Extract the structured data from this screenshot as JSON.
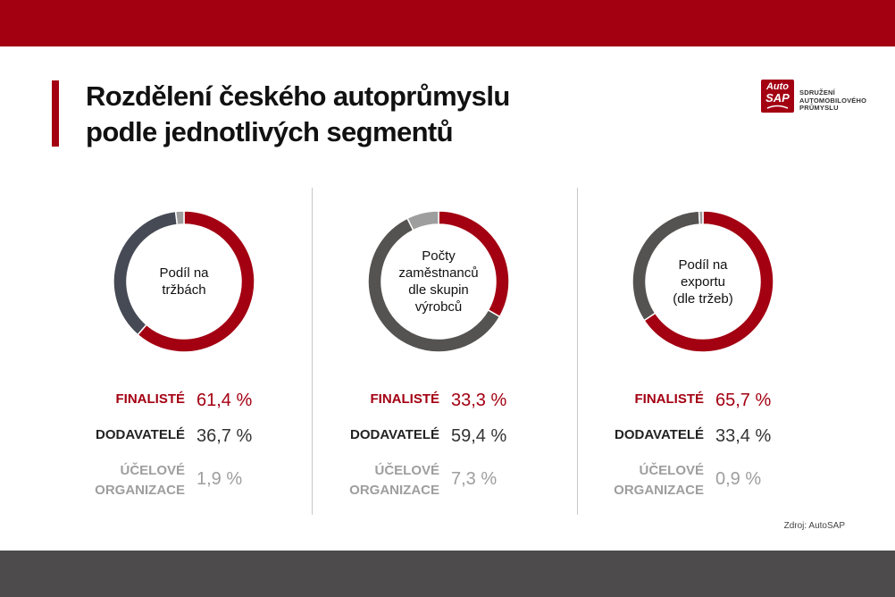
{
  "title": "Rozdělení českého autoprůmyslu\npodle jednotlivých segmentů",
  "logo": {
    "mark_line1": "Auto",
    "mark_line2": "SAP",
    "text_lines": [
      "SDRUŽENÍ",
      "AUTOMOBILOVÉHO",
      "PRŮMYSLU"
    ]
  },
  "colors": {
    "finaliste": "#a30012",
    "dodavatele": "#333333",
    "ucelove": "#9e9e9e",
    "brand": "#a30012"
  },
  "panels": [
    {
      "center_label": "Podíl na\ntržbách",
      "dodavatele_color": "#464a55",
      "rows": [
        {
          "label": "FINALISTÉ",
          "value": "61,4 %"
        },
        {
          "label": "DODAVATELÉ",
          "value": "36,7 %"
        },
        {
          "label": "ÚČELOVÉ\nORGANIZACE",
          "value": "1,9 %"
        }
      ]
    },
    {
      "center_label": "Počty\nzaměstnanců\ndle skupin\nvýrobců",
      "dodavatele_color": "#555352",
      "rows": [
        {
          "label": "FINALISTÉ",
          "value": "33,3 %"
        },
        {
          "label": "DODAVATELÉ",
          "value": "59,4 %"
        },
        {
          "label": "ÚČELOVÉ\nORGANIZACE",
          "value": "7,3 %"
        }
      ]
    },
    {
      "center_label": "Podíl na\nexportu\n(dle tržeb)",
      "dodavatele_color": "#555352",
      "rows": [
        {
          "label": "FINALISTÉ",
          "value": "65,7 %"
        },
        {
          "label": "DODAVATELÉ",
          "value": "33,4 %"
        },
        {
          "label": "ÚČELOVÉ\nORGANIZACE",
          "value": "0,9 %"
        }
      ]
    }
  ],
  "source": "Zdroj: AutoSAP",
  "chart_data": [
    {
      "type": "pie",
      "title": "Podíl na tržbách",
      "categories": [
        "FINALISTÉ",
        "DODAVATELÉ",
        "ÚČELOVÉ ORGANIZACE"
      ],
      "values": [
        61.4,
        36.7,
        1.9
      ]
    },
    {
      "type": "pie",
      "title": "Počty zaměstnanců dle skupin výrobců",
      "categories": [
        "FINALISTÉ",
        "DODAVATELÉ",
        "ÚČELOVÉ ORGANIZACE"
      ],
      "values": [
        33.3,
        59.4,
        7.3
      ]
    },
    {
      "type": "pie",
      "title": "Podíl na exportu (dle tržeb)",
      "categories": [
        "FINALISTÉ",
        "DODAVATELÉ",
        "ÚČELOVÉ ORGANIZACE"
      ],
      "values": [
        65.7,
        33.4,
        0.9
      ]
    }
  ]
}
